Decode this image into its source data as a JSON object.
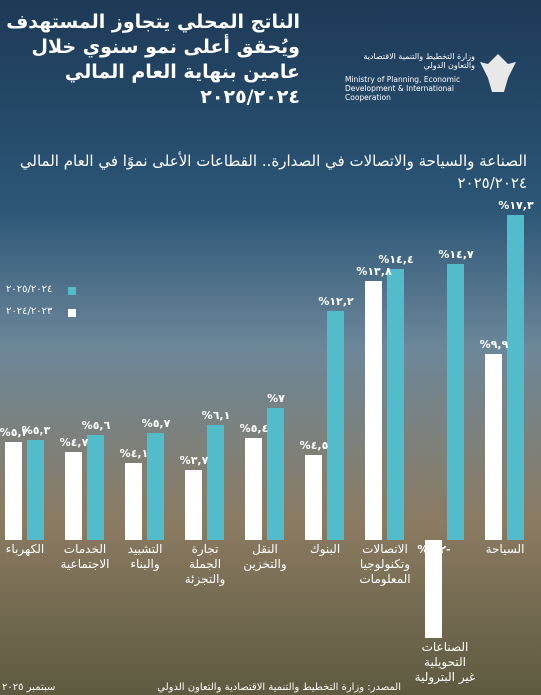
{
  "header": {
    "title": "الناتج المحلي يتجاوز المستهدف ويُحقق أعلى نمو سنوي خلال عامين بنهاية العام المالي ٢٠٢٥/٢٠٢٤",
    "ministry_ar": "وزارة التخطيط والتنمية الاقتصادية والتعاون الدولي",
    "ministry_en": "Ministry of Planning, Economic Development & International Cooperation"
  },
  "chart_data": {
    "type": "bar",
    "title": "الصناعة والسياحة والاتصالات في الصدارة.. القطاعات الأعلى نموًا في العام المالي ٢٠٢٥/٢٠٢٤",
    "categories": [
      "السياحة",
      "الصناعات التحويلية غير البترولية",
      "الاتصالات وتكنولوجيا المعلومات",
      "البنوك",
      "النقل والتخزين",
      "تجارة الجملة والتجزئة",
      "التشييد والبناء",
      "الخدمات الاجتماعية",
      "الكهرباء"
    ],
    "series": [
      {
        "name": "٢٠٢٥/٢٠٢٤",
        "color": "#52bccb",
        "values": [
          17.3,
          14.7,
          14.4,
          12.2,
          7,
          6.1,
          5.7,
          5.6,
          5.3
        ],
        "value_labels": [
          "%١٧,٣",
          "%١٤,٧",
          "%١٤,٤",
          "%١٢,٢",
          "%٧",
          "%٦,١",
          "%٥,٧",
          "%٥,٦",
          "%٥,٣"
        ]
      },
      {
        "name": "٢٠٢٤/٢٠٢٣",
        "color": "#ffffff",
        "values": [
          9.9,
          -5.2,
          13.8,
          4.5,
          5.4,
          3.7,
          4.1,
          4.7,
          5.2
        ],
        "value_labels": [
          "%٩,٩",
          "%٥,٢-",
          "%١٣,٨",
          "%٤,٥",
          "%٥,٤",
          "%٣,٧",
          "%٤,١",
          "%٤,٧",
          "%٥,٢"
        ]
      }
    ],
    "legend": "right"
  },
  "footer": {
    "source": "المصدر: وزارة التخطيط والتنمية الاقتصادية والتعاون الدولي",
    "date": "سبتمبر ٢٠٢٥"
  }
}
